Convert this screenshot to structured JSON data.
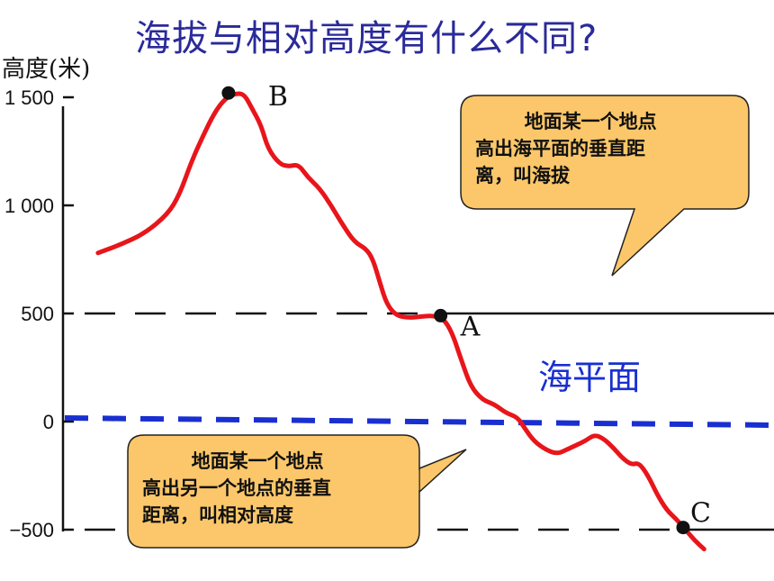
{
  "title": "海拔与相对高度有什么不同?",
  "chart_data": {
    "type": "line",
    "ylabel": "高度(米)",
    "ylim": [
      -600,
      1550
    ],
    "yticks": [
      {
        "value": 1500,
        "label": "1 500"
      },
      {
        "value": 1000,
        "label": "1 000"
      },
      {
        "value": 500,
        "label": "500"
      },
      {
        "value": 0,
        "label": "0"
      },
      {
        "value": -500,
        "label": "-500"
      }
    ],
    "series": [
      {
        "color": "#e8151b",
        "points": [
          [
            0,
            780
          ],
          [
            10,
            820
          ],
          [
            20,
            870
          ],
          [
            30,
            960
          ],
          [
            35,
            1050
          ],
          [
            40,
            1200
          ],
          [
            45,
            1320
          ],
          [
            50,
            1430
          ],
          [
            55,
            1500
          ],
          [
            60,
            1520
          ],
          [
            63,
            1510
          ],
          [
            66,
            1450
          ],
          [
            70,
            1370
          ],
          [
            73,
            1260
          ],
          [
            78,
            1190
          ],
          [
            82,
            1180
          ],
          [
            86,
            1190
          ],
          [
            90,
            1130
          ],
          [
            95,
            1080
          ],
          [
            100,
            1000
          ],
          [
            105,
            910
          ],
          [
            110,
            830
          ],
          [
            115,
            800
          ],
          [
            118,
            750
          ],
          [
            121,
            640
          ],
          [
            124,
            540
          ],
          [
            128,
            490
          ],
          [
            133,
            480
          ],
          [
            138,
            485
          ],
          [
            143,
            490
          ],
          [
            148,
            480
          ],
          [
            152,
            410
          ],
          [
            156,
            280
          ],
          [
            160,
            160
          ],
          [
            165,
            100
          ],
          [
            170,
            80
          ],
          [
            175,
            40
          ],
          [
            180,
            20
          ],
          [
            183,
            -30
          ],
          [
            187,
            -90
          ],
          [
            192,
            -130
          ],
          [
            197,
            -150
          ],
          [
            201,
            -130
          ],
          [
            205,
            -110
          ],
          [
            209,
            -90
          ],
          [
            213,
            -60
          ],
          [
            217,
            -80
          ],
          [
            221,
            -120
          ],
          [
            225,
            -170
          ],
          [
            229,
            -200
          ],
          [
            232,
            -190
          ],
          [
            236,
            -250
          ],
          [
            240,
            -340
          ],
          [
            244,
            -410
          ],
          [
            248,
            -450
          ],
          [
            252,
            -500
          ],
          [
            256,
            -550
          ],
          [
            260,
            -590
          ]
        ]
      }
    ],
    "markers": [
      {
        "label": "B",
        "x": 56,
        "y": 1520
      },
      {
        "label": "A",
        "x": 147,
        "y": 490
      },
      {
        "label": "C",
        "x": 251,
        "y": -490
      }
    ],
    "reference_lines": [
      {
        "y": 500,
        "style": "black-dash-to-solid",
        "solid_from_x": 148
      },
      {
        "y": -500,
        "style": "black-dash-to-solid",
        "solid_from_x": 251
      },
      {
        "y": 0,
        "style": "blue-dashed",
        "label": "海平面"
      }
    ],
    "xlim": [
      -15,
      290
    ]
  },
  "callouts": {
    "altitude": {
      "line1": "地面某一个地点",
      "line2": "高出海平面的垂直距",
      "line3": "离，叫海拔"
    },
    "relative": {
      "line1": "地面某一个地点",
      "line2": "高出另一个地点的垂直",
      "line3": "距离，叫相对高度"
    }
  },
  "colors": {
    "curve": "#e8151b",
    "sea_level": "#1a2fd0",
    "callout_fill": "#fbc76a",
    "title": "#2a2a9a"
  }
}
